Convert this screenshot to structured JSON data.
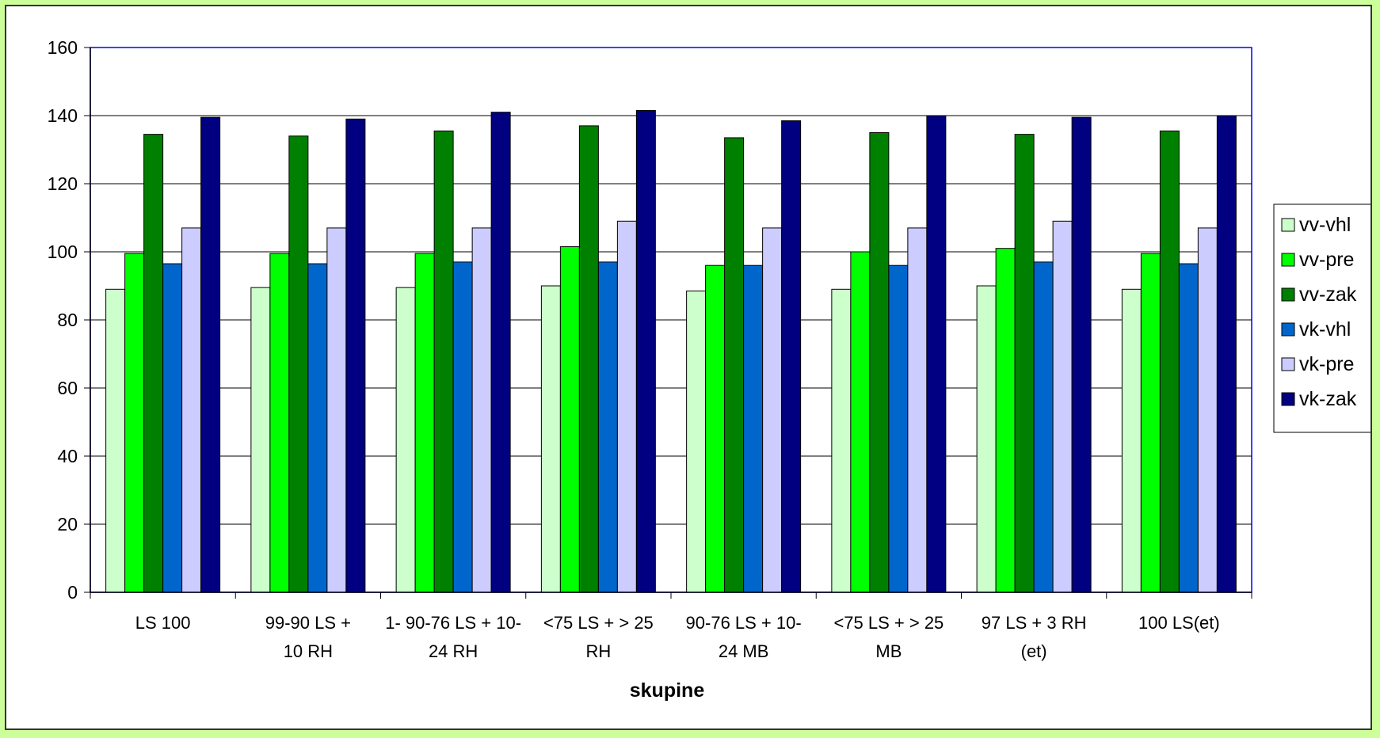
{
  "chart_data": {
    "type": "bar",
    "title": "",
    "xlabel": "skupine",
    "ylabel": "",
    "ylim": [
      0,
      160
    ],
    "yticks": [
      0,
      20,
      40,
      60,
      80,
      100,
      120,
      140,
      160
    ],
    "grid": true,
    "legend_position": "right",
    "categories": [
      [
        "LS 100"
      ],
      [
        "99-90 LS +",
        "10 RH"
      ],
      [
        "1- 90-76 LS + 10-",
        "24 RH"
      ],
      [
        "<75 LS + > 25",
        "RH"
      ],
      [
        "90-76 LS + 10-",
        "24 MB"
      ],
      [
        "<75 LS + > 25",
        "MB"
      ],
      [
        "97 LS + 3 RH",
        "(et)"
      ],
      [
        "100 LS(et)"
      ]
    ],
    "series": [
      {
        "name": "vv-vhl",
        "color": "#ccffcc",
        "values": [
          89,
          89.5,
          89.5,
          90,
          88.5,
          89,
          90,
          89
        ]
      },
      {
        "name": "vv-pre",
        "color": "#00ff00",
        "values": [
          99.5,
          99.5,
          99.5,
          101.5,
          96,
          100,
          101,
          99.5
        ]
      },
      {
        "name": "vv-zak",
        "color": "#008000",
        "values": [
          134.5,
          134,
          135.5,
          137,
          133.5,
          135,
          134.5,
          135.5
        ]
      },
      {
        "name": "vk-vhl",
        "color": "#0066cc",
        "values": [
          96.5,
          96.5,
          97,
          97,
          96,
          96,
          97,
          96.5
        ]
      },
      {
        "name": "vk-pre",
        "color": "#ccccff",
        "values": [
          107,
          107,
          107,
          109,
          107,
          107,
          109,
          107
        ]
      },
      {
        "name": "vk-zak",
        "color": "#000080",
        "values": [
          139.5,
          139,
          141,
          141.5,
          138.5,
          140,
          139.5,
          140
        ]
      }
    ]
  }
}
